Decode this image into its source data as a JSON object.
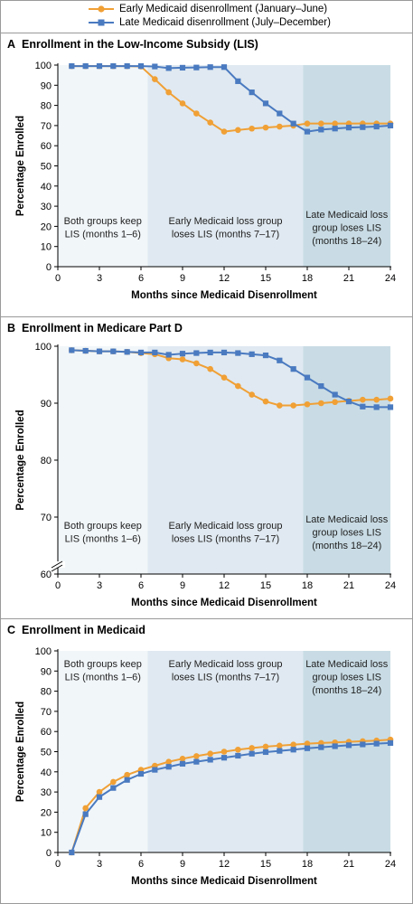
{
  "legend": {
    "early": "Early Medicaid disenrollment (January–June)",
    "late": "Late Medicaid disenrollment (July–December)"
  },
  "colors": {
    "early": "#f0a035",
    "late": "#4a7ac0",
    "shade1": "#f1f6f9",
    "shade2": "#e0e9f1",
    "shade3": "#c9dce5"
  },
  "chart_data": [
    {
      "type": "line",
      "letter": "A",
      "title": "Enrollment in the Low-Income Subsidy (LIS)",
      "xlabel": "Months since Medicaid Disenrollment",
      "ylabel": "Percentage Enrolled",
      "xlim": [
        0,
        24
      ],
      "ylim": [
        0,
        100
      ],
      "xticks": [
        0,
        3,
        6,
        9,
        12,
        15,
        18,
        21,
        24
      ],
      "yticks": [
        0,
        10,
        20,
        30,
        40,
        50,
        60,
        70,
        80,
        90,
        100
      ],
      "axis_break": false,
      "periods": [
        {
          "label": [
            "Both groups keep",
            "LIS (months 1–6)"
          ]
        },
        {
          "label": [
            "Early Medicaid loss group",
            "loses LIS (months 7–17)"
          ]
        },
        {
          "label": [
            "Late Medicaid loss",
            "group loses LIS",
            "(months 18–24)"
          ]
        }
      ],
      "x": [
        1,
        2,
        3,
        4,
        5,
        6,
        7,
        8,
        9,
        10,
        11,
        12,
        13,
        14,
        15,
        16,
        17,
        18,
        19,
        20,
        21,
        22,
        23,
        24
      ],
      "series": [
        {
          "name": "Early Medicaid disenrollment (January–June)",
          "values": [
            99.5,
            99.5,
            99.5,
            99.5,
            99.5,
            99.3,
            93,
            86.5,
            81,
            76,
            71.5,
            67,
            67.8,
            68.5,
            69,
            69.5,
            70,
            71,
            71,
            71,
            71,
            71,
            71,
            71
          ]
        },
        {
          "name": "Late Medicaid disenrollment (July–December)",
          "values": [
            99.5,
            99.5,
            99.5,
            99.5,
            99.5,
            99.5,
            99.3,
            98.5,
            98.7,
            98.8,
            99,
            99,
            92,
            86.5,
            81,
            76,
            71,
            67,
            68,
            68.5,
            69,
            69.2,
            69.5,
            70
          ]
        }
      ]
    },
    {
      "type": "line",
      "letter": "B",
      "title": "Enrollment in Medicare Part D",
      "xlabel": "Months since Medicaid Disenrollment",
      "ylabel": "Percentage Enrolled",
      "xlim": [
        0,
        24
      ],
      "ylim": [
        60,
        100
      ],
      "xticks": [
        0,
        3,
        6,
        9,
        12,
        15,
        18,
        21,
        24
      ],
      "yticks": [
        60,
        70,
        80,
        90,
        100
      ],
      "axis_break": true,
      "periods": [
        {
          "label": [
            "Both groups keep",
            "LIS (months 1–6)"
          ]
        },
        {
          "label": [
            "Early Medicaid loss group",
            "loses LIS (months 7–17)"
          ]
        },
        {
          "label": [
            "Late Medicaid loss",
            "group loses LIS",
            "(months 18–24)"
          ]
        }
      ],
      "x": [
        1,
        2,
        3,
        4,
        5,
        6,
        7,
        8,
        9,
        10,
        11,
        12,
        13,
        14,
        15,
        16,
        17,
        18,
        19,
        20,
        21,
        22,
        23,
        24
      ],
      "series": [
        {
          "name": "Early Medicaid disenrollment (January–June)",
          "values": [
            99.3,
            99.2,
            99.1,
            99.1,
            99,
            98.8,
            98.6,
            97.9,
            97.7,
            97,
            96,
            94.5,
            93,
            91.5,
            90.3,
            89.6,
            89.6,
            89.8,
            90,
            90.2,
            90.4,
            90.6,
            90.6,
            90.8
          ]
        },
        {
          "name": "Late Medicaid disenrollment (July–December)",
          "values": [
            99.3,
            99.2,
            99.1,
            99.1,
            99,
            98.9,
            98.9,
            98.5,
            98.7,
            98.8,
            98.9,
            98.9,
            98.8,
            98.6,
            98.4,
            97.5,
            96,
            94.5,
            93,
            91.5,
            90.3,
            89.4,
            89.3,
            89.3
          ]
        }
      ]
    },
    {
      "type": "line",
      "letter": "C",
      "title": "Enrollment in Medicaid",
      "xlabel": "Months since Medicaid Disenrollment",
      "ylabel": "Percentage Enrolled",
      "xlim": [
        0,
        24
      ],
      "ylim": [
        0,
        100
      ],
      "xticks": [
        0,
        3,
        6,
        9,
        12,
        15,
        18,
        21,
        24
      ],
      "yticks": [
        0,
        10,
        20,
        30,
        40,
        50,
        60,
        70,
        80,
        90,
        100
      ],
      "axis_break": false,
      "periods": [
        {
          "label": [
            "Both groups keep",
            "LIS (months 1–6)"
          ]
        },
        {
          "label": [
            "Early Medicaid loss group",
            "loses LIS (months 7–17)"
          ]
        },
        {
          "label": [
            "Late Medicaid loss",
            "group loses LIS",
            "(months 18–24)"
          ]
        }
      ],
      "x": [
        1,
        2,
        3,
        4,
        5,
        6,
        7,
        8,
        9,
        10,
        11,
        12,
        13,
        14,
        15,
        16,
        17,
        18,
        19,
        20,
        21,
        22,
        23,
        24
      ],
      "series": [
        {
          "name": "Early Medicaid disenrollment (January–June)",
          "values": [
            0,
            22,
            30,
            35,
            38.5,
            41,
            43,
            45,
            46.5,
            47.8,
            49,
            50,
            51,
            51.8,
            52.5,
            53,
            53.5,
            54,
            54.3,
            54.6,
            54.9,
            55.2,
            55.5,
            56
          ]
        },
        {
          "name": "Late Medicaid disenrollment (July–December)",
          "values": [
            0,
            19,
            27.5,
            32,
            36,
            39,
            41,
            42.5,
            44,
            45,
            46,
            47,
            48,
            49,
            49.8,
            50.4,
            51,
            51.7,
            52.2,
            52.7,
            53.2,
            53.6,
            54,
            54.3
          ]
        }
      ]
    }
  ]
}
